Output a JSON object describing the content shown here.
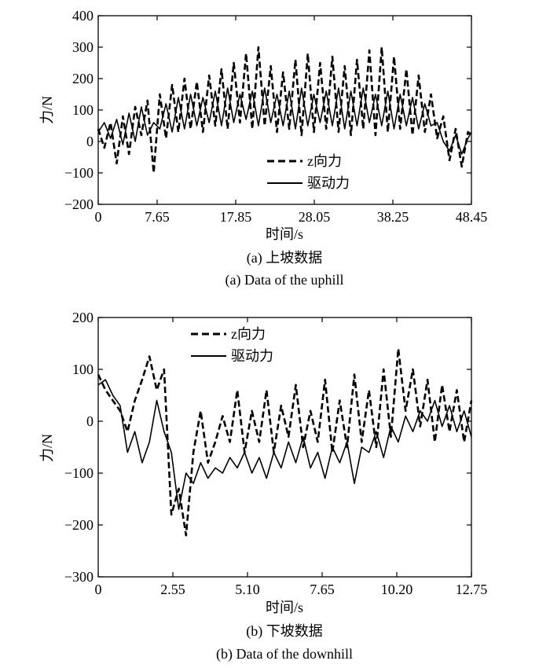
{
  "figure": {
    "panels": [
      {
        "id": "a",
        "ylabel": "力/N",
        "xlabel": "时间/s",
        "caption_cn": "(a) 上坡数据",
        "caption_en": "(a) Data of the uphill",
        "legend": [
          "z向力",
          "驱动力"
        ]
      },
      {
        "id": "b",
        "ylabel": "力/N",
        "xlabel": "时间/s",
        "caption_cn": "(b) 下坡数据",
        "caption_en": "(b) Data of the downhill",
        "legend": [
          "z向力",
          "驱动力"
        ]
      }
    ]
  },
  "chart_data": [
    {
      "type": "line",
      "xlabel": "时间/s",
      "ylabel": "力/N",
      "xlim": [
        0,
        48.45
      ],
      "ylim": [
        -200,
        400
      ],
      "xticks": [
        0,
        7.65,
        17.85,
        28.05,
        38.25,
        48.45
      ],
      "xtick_labels": [
        "0",
        "7.65",
        "17.85",
        "28.05",
        "38.25",
        "48.45"
      ],
      "yticks": [
        -200,
        -100,
        0,
        100,
        200,
        300,
        400
      ],
      "ytick_labels": [
        "−200",
        "−100",
        "0",
        "100",
        "200",
        "300",
        "400"
      ],
      "legend_position": "lower-right",
      "grid": false,
      "series": [
        {
          "name": "z向力",
          "style": "dashed",
          "color": "#000000",
          "x": [
            0,
            0.8,
            1.6,
            2.4,
            3.2,
            4.0,
            4.8,
            5.6,
            6.4,
            7.2,
            8.0,
            8.8,
            9.6,
            10.4,
            11.2,
            12.0,
            12.8,
            13.6,
            14.4,
            15.2,
            16.0,
            16.8,
            17.6,
            18.4,
            19.2,
            20.0,
            20.8,
            21.6,
            22.4,
            23.2,
            24.0,
            24.8,
            25.6,
            26.4,
            27.2,
            28.0,
            28.8,
            29.6,
            30.4,
            31.2,
            32.0,
            32.8,
            33.6,
            34.4,
            35.2,
            36.0,
            36.8,
            37.6,
            38.4,
            39.2,
            40.0,
            40.8,
            41.6,
            42.4,
            43.2,
            44.0,
            44.8,
            45.6,
            46.4,
            47.2,
            48.0,
            48.45
          ],
          "y": [
            40,
            -20,
            60,
            -70,
            80,
            -40,
            110,
            20,
            130,
            -100,
            150,
            10,
            180,
            30,
            200,
            40,
            190,
            30,
            210,
            50,
            230,
            40,
            250,
            60,
            280,
            40,
            300,
            50,
            240,
            30,
            220,
            40,
            260,
            20,
            280,
            30,
            250,
            40,
            270,
            30,
            240,
            20,
            260,
            40,
            290,
            20,
            300,
            30,
            270,
            40,
            230,
            20,
            210,
            30,
            150,
            10,
            80,
            -60,
            40,
            -80,
            30,
            20
          ]
        },
        {
          "name": "驱动力",
          "style": "solid",
          "color": "#000000",
          "x": [
            0,
            0.8,
            1.6,
            2.4,
            3.2,
            4.0,
            4.8,
            5.6,
            6.4,
            7.2,
            8.0,
            8.8,
            9.6,
            10.4,
            11.2,
            12.0,
            12.8,
            13.6,
            14.4,
            15.2,
            16.0,
            16.8,
            17.6,
            18.4,
            19.2,
            20.0,
            20.8,
            21.6,
            22.4,
            23.2,
            24.0,
            24.8,
            25.6,
            26.4,
            27.2,
            28.0,
            28.8,
            29.6,
            30.4,
            31.2,
            32.0,
            32.8,
            33.6,
            34.4,
            35.2,
            36.0,
            36.8,
            37.6,
            38.4,
            39.2,
            40.0,
            40.8,
            41.6,
            42.4,
            43.2,
            44.0,
            44.8,
            45.6,
            46.4,
            47.2,
            48.0,
            48.45
          ],
          "y": [
            30,
            60,
            10,
            70,
            -10,
            90,
            0,
            110,
            20,
            60,
            40,
            120,
            30,
            140,
            40,
            150,
            50,
            140,
            60,
            160,
            50,
            170,
            60,
            150,
            70,
            160,
            50,
            170,
            60,
            150,
            50,
            160,
            40,
            170,
            50,
            150,
            60,
            160,
            50,
            170,
            40,
            160,
            50,
            170,
            60,
            150,
            50,
            160,
            40,
            150,
            50,
            140,
            40,
            120,
            50,
            60,
            0,
            -30,
            20,
            -40,
            10,
            30
          ]
        }
      ]
    },
    {
      "type": "line",
      "xlabel": "时间/s",
      "ylabel": "力/N",
      "xlim": [
        0,
        12.75
      ],
      "ylim": [
        -300,
        200
      ],
      "xticks": [
        0,
        2.55,
        5.1,
        7.65,
        10.2,
        12.75
      ],
      "xtick_labels": [
        "0",
        "2.55",
        "5.10",
        "7.65",
        "10.20",
        "12.75"
      ],
      "yticks": [
        -300,
        -200,
        -100,
        0,
        100,
        200
      ],
      "ytick_labels": [
        "−300",
        "−200",
        "−100",
        "0",
        "100",
        "200"
      ],
      "legend_position": "top-left",
      "grid": false,
      "series": [
        {
          "name": "z向力",
          "style": "dashed",
          "color": "#000000",
          "x": [
            0,
            0.25,
            0.5,
            0.75,
            1.0,
            1.25,
            1.5,
            1.75,
            2.0,
            2.25,
            2.5,
            2.75,
            3.0,
            3.25,
            3.5,
            3.75,
            4.0,
            4.25,
            4.5,
            4.75,
            5.0,
            5.25,
            5.5,
            5.75,
            6.0,
            6.25,
            6.5,
            6.75,
            7.0,
            7.25,
            7.5,
            7.75,
            8.0,
            8.25,
            8.5,
            8.75,
            9.0,
            9.25,
            9.5,
            9.75,
            10.0,
            10.25,
            10.5,
            10.75,
            11.0,
            11.25,
            11.5,
            11.75,
            12.0,
            12.25,
            12.5,
            12.75
          ],
          "y": [
            90,
            60,
            40,
            20,
            -20,
            40,
            80,
            125,
            60,
            100,
            -180,
            -130,
            -220,
            -60,
            20,
            -80,
            -40,
            10,
            -40,
            60,
            -60,
            20,
            -40,
            60,
            -60,
            30,
            -30,
            70,
            -50,
            20,
            -40,
            80,
            -60,
            40,
            -50,
            90,
            -40,
            60,
            -50,
            100,
            -30,
            140,
            20,
            100,
            -10,
            80,
            -40,
            70,
            -20,
            60,
            -40,
            40
          ]
        },
        {
          "name": "驱动力",
          "style": "solid",
          "color": "#000000",
          "x": [
            0,
            0.25,
            0.5,
            0.75,
            1.0,
            1.25,
            1.5,
            1.75,
            2.0,
            2.25,
            2.5,
            2.75,
            3.0,
            3.25,
            3.5,
            3.75,
            4.0,
            4.25,
            4.5,
            4.75,
            5.0,
            5.25,
            5.5,
            5.75,
            6.0,
            6.25,
            6.5,
            6.75,
            7.0,
            7.25,
            7.5,
            7.75,
            8.0,
            8.25,
            8.5,
            8.75,
            9.0,
            9.25,
            9.5,
            9.75,
            10.0,
            10.25,
            10.5,
            10.75,
            11.0,
            11.25,
            11.5,
            11.75,
            12.0,
            12.25,
            12.5,
            12.75
          ],
          "y": [
            70,
            80,
            50,
            30,
            -60,
            -20,
            -80,
            -40,
            40,
            -20,
            -60,
            -170,
            -100,
            -120,
            -80,
            -110,
            -90,
            -100,
            -70,
            -90,
            -60,
            -100,
            -70,
            -110,
            -60,
            -90,
            -40,
            -80,
            -30,
            -90,
            -60,
            -110,
            -50,
            -80,
            -40,
            -120,
            -50,
            -60,
            -20,
            -70,
            -10,
            -40,
            10,
            -20,
            20,
            0,
            40,
            -10,
            30,
            -20,
            20,
            -30
          ]
        }
      ]
    }
  ]
}
